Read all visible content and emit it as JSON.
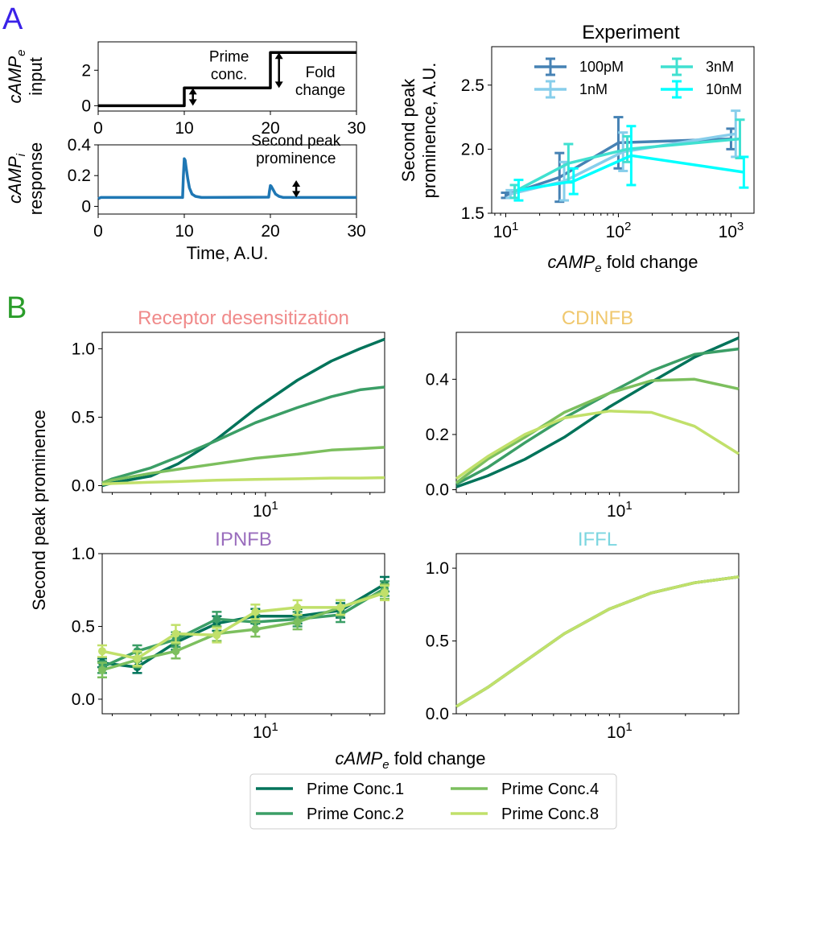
{
  "panels": {
    "a": "A",
    "b": "B"
  },
  "colors": {
    "panel_a": "#3a22e8",
    "panel_b": "#2a9d2a",
    "response": "#1f77b4",
    "t_receptor": "#f08a8a",
    "t_cdinfb": "#f0c86e",
    "t_ipnfb": "#9a6dbd",
    "t_iffl": "#7cd6e0",
    "prime1": "#00735a",
    "prime2": "#3b9e66",
    "prime4": "#7cbf5e",
    "prime8": "#c1e06a",
    "exp_100pM": "#4682b4",
    "exp_1nM": "#87ceeb",
    "exp_3nM": "#40e0d0",
    "exp_10nM": "#00ffff"
  },
  "chart_data": [
    {
      "id": "input",
      "type": "line",
      "ylabel": "cAMP_e input",
      "ylabel_line1": "cAMP",
      "ylabel_sub": "e",
      "ylabel_line2": "input",
      "xlim": [
        0,
        30
      ],
      "ylim": [
        -0.3,
        3.6
      ],
      "xticks": [
        0,
        10,
        20,
        30
      ],
      "yticks": [
        0,
        2
      ],
      "x": [
        0,
        10,
        10,
        20,
        20,
        30
      ],
      "y": [
        0,
        0,
        1,
        1,
        3,
        3
      ],
      "annotations": [
        {
          "lines": [
            "Prime",
            "conc."
          ],
          "x": 15.2,
          "y": 2.5
        },
        {
          "lines": [
            "Fold",
            "change"
          ],
          "x": 25.8,
          "y": 1.6
        }
      ],
      "arrows": [
        {
          "x": 11,
          "y0": 0,
          "y1": 1
        },
        {
          "x": 21,
          "y0": 1,
          "y1": 3
        }
      ]
    },
    {
      "id": "response",
      "type": "line",
      "ylabel": "cAMP_i response",
      "ylabel_line1": "cAMP",
      "ylabel_sub": "i",
      "ylabel_line2": "response",
      "xlabel": "Time, A.U.",
      "xlim": [
        0,
        30
      ],
      "ylim": [
        -0.05,
        0.4
      ],
      "xticks": [
        0,
        10,
        20,
        30
      ],
      "yticks": [
        0,
        0.2,
        0.4
      ],
      "x": [
        0,
        0.3,
        9.8,
        9.9,
        10.0,
        10.1,
        10.2,
        10.4,
        10.6,
        10.9,
        11.3,
        12.0,
        19.8,
        19.9,
        20.0,
        20.1,
        20.3,
        20.6,
        21.0,
        21.5,
        30
      ],
      "y": [
        0.05,
        0.058,
        0.058,
        0.2,
        0.31,
        0.3,
        0.26,
        0.18,
        0.12,
        0.08,
        0.065,
        0.058,
        0.06,
        0.1,
        0.135,
        0.13,
        0.11,
        0.08,
        0.065,
        0.058,
        0.058
      ],
      "annotations": [
        {
          "lines": [
            "Second peak",
            "prominence"
          ],
          "x": 22.5,
          "y": 0.26
        }
      ],
      "arrows": [
        {
          "x": 23,
          "y0": 0.058,
          "y1": 0.17
        }
      ]
    },
    {
      "id": "experiment",
      "type": "line",
      "title": "Experiment",
      "ylabel": "Second peak prominence, A.U.",
      "ylabel_line1": "Second peak",
      "ylabel_line2": "prominence, A.U.",
      "xlabel": "cAMP_e fold change",
      "xscale": "log",
      "xlim": [
        7.5,
        1600
      ],
      "ylim": [
        1.5,
        2.8
      ],
      "yticks": [
        1.5,
        2.0,
        2.5
      ],
      "xticks": [
        10,
        100,
        1000
      ],
      "legend": "top",
      "series": [
        {
          "name": "100pM",
          "x": [
            10,
            30,
            100,
            1000
          ],
          "y": [
            1.64,
            1.78,
            2.05,
            2.08
          ],
          "err": [
            0.02,
            0.19,
            0.2,
            0.08
          ]
        },
        {
          "name": "1nM",
          "x": [
            11,
            33,
            110,
            1100
          ],
          "y": [
            1.65,
            1.75,
            1.98,
            2.12
          ],
          "err": [
            0.03,
            0.15,
            0.15,
            0.18
          ]
        },
        {
          "name": "3nM",
          "x": [
            12,
            36,
            120,
            1200
          ],
          "y": [
            1.67,
            1.89,
            2.0,
            2.08
          ],
          "err": [
            0.05,
            0.15,
            0.1,
            0.15
          ]
        },
        {
          "name": "10nM",
          "x": [
            13,
            40,
            130,
            1300
          ],
          "y": [
            1.68,
            1.75,
            1.95,
            1.82
          ],
          "err": [
            0.08,
            0.1,
            0.23,
            0.12
          ]
        }
      ]
    },
    {
      "id": "receptor",
      "type": "line",
      "title": "Receptor desensitization",
      "xscale": "log",
      "xlim": [
        1.8,
        35
      ],
      "ylim": [
        -0.05,
        1.12
      ],
      "yticks": [
        0.0,
        0.5,
        1.0
      ],
      "series": [
        {
          "name": "Prime Conc.1",
          "x": [
            1.8,
            2,
            3,
            4,
            6,
            9,
            14,
            20,
            27,
            35
          ],
          "y": [
            0.0,
            0.02,
            0.07,
            0.16,
            0.34,
            0.56,
            0.77,
            0.91,
            1.0,
            1.07
          ]
        },
        {
          "name": "Prime Conc.2",
          "x": [
            1.8,
            2,
            3,
            4,
            6,
            9,
            14,
            20,
            27,
            35
          ],
          "y": [
            0.02,
            0.05,
            0.13,
            0.21,
            0.33,
            0.46,
            0.57,
            0.65,
            0.7,
            0.72
          ]
        },
        {
          "name": "Prime Conc.4",
          "x": [
            1.8,
            2,
            3,
            4,
            6,
            9,
            14,
            20,
            27,
            35
          ],
          "y": [
            0.02,
            0.04,
            0.09,
            0.12,
            0.16,
            0.2,
            0.23,
            0.26,
            0.27,
            0.28
          ]
        },
        {
          "name": "Prime Conc.8",
          "x": [
            1.8,
            2,
            3,
            4,
            6,
            9,
            14,
            20,
            27,
            35
          ],
          "y": [
            0.01,
            0.015,
            0.025,
            0.03,
            0.04,
            0.045,
            0.05,
            0.055,
            0.055,
            0.058
          ]
        }
      ]
    },
    {
      "id": "cdinfb",
      "type": "line",
      "title": "CDINFB",
      "xscale": "log",
      "xlim": [
        1.8,
        35
      ],
      "ylim": [
        -0.01,
        0.57
      ],
      "yticks": [
        0.0,
        0.2,
        0.4
      ],
      "series": [
        {
          "name": "Prime Conc.1",
          "x": [
            1.8,
            2.5,
            3.7,
            5.6,
            9,
            14,
            22,
            35
          ],
          "y": [
            0.01,
            0.05,
            0.11,
            0.19,
            0.3,
            0.39,
            0.48,
            0.55
          ]
        },
        {
          "name": "Prime Conc.2",
          "x": [
            1.8,
            2.5,
            3.7,
            5.6,
            9,
            14,
            22,
            35
          ],
          "y": [
            0.02,
            0.08,
            0.17,
            0.26,
            0.35,
            0.43,
            0.49,
            0.51
          ]
        },
        {
          "name": "Prime Conc.4",
          "x": [
            1.8,
            2.5,
            3.7,
            5.6,
            9,
            14,
            22,
            35
          ],
          "y": [
            0.025,
            0.11,
            0.19,
            0.28,
            0.35,
            0.395,
            0.4,
            0.365
          ]
        },
        {
          "name": "Prime Conc.8",
          "x": [
            1.8,
            2.5,
            3.7,
            5.6,
            9,
            14,
            22,
            35
          ],
          "y": [
            0.04,
            0.12,
            0.2,
            0.26,
            0.285,
            0.28,
            0.23,
            0.13
          ]
        }
      ]
    },
    {
      "id": "ipnfb",
      "type": "line",
      "title": "IPNFB",
      "xscale": "log",
      "xlim": [
        1.8,
        35
      ],
      "ylim": [
        -0.1,
        1.0
      ],
      "yticks": [
        0.0,
        0.5,
        1.0
      ],
      "series": [
        {
          "name": "Prime Conc.1",
          "x": [
            1.8,
            2.6,
            3.9,
            6,
            9,
            14,
            22,
            35
          ],
          "y": [
            0.25,
            0.22,
            0.39,
            0.52,
            0.57,
            0.57,
            0.61,
            0.79
          ],
          "err": [
            0.03,
            0.04,
            0.05,
            0.05,
            0.05,
            0.05,
            0.05,
            0.05
          ]
        },
        {
          "name": "Prime Conc.2",
          "x": [
            1.8,
            2.6,
            3.9,
            6,
            9,
            14,
            22,
            35
          ],
          "y": [
            0.22,
            0.33,
            0.41,
            0.55,
            0.53,
            0.55,
            0.58,
            0.76
          ],
          "err": [
            0.04,
            0.04,
            0.05,
            0.05,
            0.05,
            0.05,
            0.05,
            0.05
          ]
        },
        {
          "name": "Prime Conc.4",
          "x": [
            1.8,
            2.6,
            3.9,
            6,
            9,
            14,
            22,
            35
          ],
          "y": [
            0.2,
            0.27,
            0.33,
            0.45,
            0.48,
            0.53,
            0.63,
            0.74
          ],
          "err": [
            0.05,
            0.05,
            0.05,
            0.05,
            0.05,
            0.05,
            0.05,
            0.05
          ]
        },
        {
          "name": "Prime Conc.8",
          "x": [
            1.8,
            2.6,
            3.9,
            6,
            9,
            14,
            22,
            35
          ],
          "y": [
            0.33,
            0.28,
            0.45,
            0.44,
            0.6,
            0.63,
            0.63,
            0.73
          ],
          "err": [
            0.04,
            0.05,
            0.06,
            0.05,
            0.05,
            0.05,
            0.05,
            0.05
          ]
        }
      ]
    },
    {
      "id": "iffl",
      "type": "line",
      "title": "IFFL",
      "xscale": "log",
      "xlim": [
        1.8,
        35
      ],
      "ylim": [
        0.0,
        1.1
      ],
      "yticks": [
        0.0,
        0.5,
        1.0
      ],
      "series": [
        {
          "name": "Prime Conc.1",
          "x": [
            1.8,
            2.5,
            3.7,
            5.6,
            9,
            14,
            22,
            35
          ],
          "y": [
            0.05,
            0.18,
            0.36,
            0.55,
            0.72,
            0.83,
            0.9,
            0.94
          ]
        },
        {
          "name": "Prime Conc.2",
          "x": [
            1.8,
            2.5,
            3.7,
            5.6,
            9,
            14,
            22,
            35
          ],
          "y": [
            0.05,
            0.18,
            0.36,
            0.55,
            0.72,
            0.83,
            0.9,
            0.94
          ]
        },
        {
          "name": "Prime Conc.4",
          "x": [
            1.8,
            2.5,
            3.7,
            5.6,
            9,
            14,
            22,
            35
          ],
          "y": [
            0.05,
            0.18,
            0.36,
            0.55,
            0.72,
            0.83,
            0.9,
            0.94
          ]
        },
        {
          "name": "Prime Conc.8",
          "x": [
            1.8,
            2.5,
            3.7,
            5.6,
            9,
            14,
            22,
            35
          ],
          "y": [
            0.05,
            0.18,
            0.36,
            0.55,
            0.72,
            0.83,
            0.9,
            0.94
          ]
        }
      ]
    }
  ],
  "shared_b": {
    "ylabel": "Second peak prominence",
    "xlabel": "cAMP_e fold change",
    "xlabel_main": "cAMP",
    "xlabel_sub": "e",
    "xlabel_rest": " fold change",
    "xtick_label": "10",
    "xtick_exp": "1"
  },
  "legend_b": [
    "Prime Conc.1",
    "Prime Conc.2",
    "Prime Conc.4",
    "Prime Conc.8"
  ]
}
